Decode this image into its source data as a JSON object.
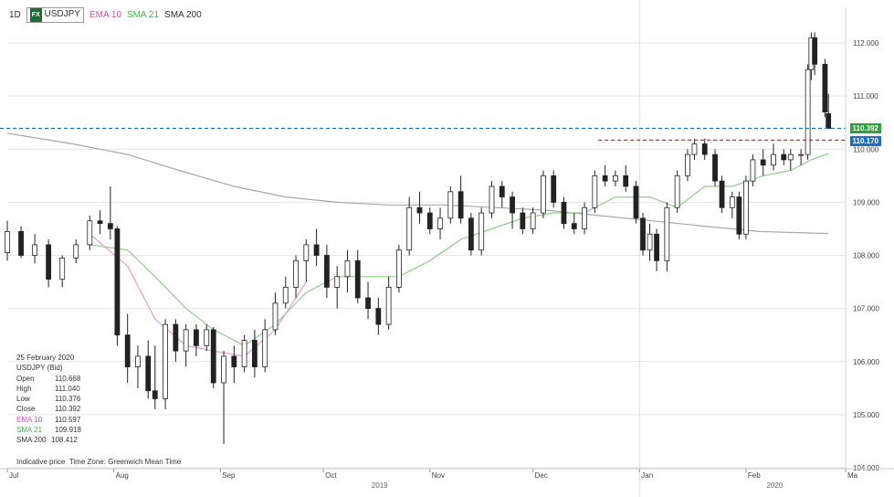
{
  "header": {
    "timeframe": "1D",
    "badge": "FX",
    "symbol": "USDJPY",
    "ema_label": "EMA 10",
    "sma21_label": "SMA 21",
    "sma200_label": "SMA 200"
  },
  "info_panel": {
    "date": "25 February 2020",
    "instrument": "USDJPY (Bid)",
    "rows": [
      {
        "label": "Open",
        "value": "110.668"
      },
      {
        "label": "High",
        "value": "111.040"
      },
      {
        "label": "Low",
        "value": "110.376"
      },
      {
        "label": "Close",
        "value": "110.392"
      },
      {
        "label": "EMA 10",
        "value": "110.597"
      },
      {
        "label": "SMA 21",
        "value": "109.918"
      },
      {
        "label": "SMA 200",
        "value": "108.412"
      }
    ]
  },
  "footer": {
    "indicative": "Indicative price",
    "timezone": "Time Zone: Greenwich Mean Time"
  },
  "price_tags": {
    "bid": "110.392",
    "ask": "110.170"
  },
  "colors": {
    "up_body": "#ffffff",
    "down_body": "#222222",
    "wick": "#222222",
    "ema10": "#e49bd6",
    "sma21": "#8fcf8a",
    "sma200": "#a8a8a8",
    "bid_line": "#1f6fbf",
    "ask_line": "#d93030",
    "bid_tag": "#2e9e3e",
    "ask_tag": "#1f6fbf",
    "grid": "#e6e6e6"
  },
  "chart_data": {
    "type": "candlestick",
    "y_axis": {
      "range": [
        104.0,
        112.5
      ],
      "ticks": [
        "104.000",
        "105.000",
        "106.000",
        "107.000",
        "108.000",
        "109.000",
        "110.000",
        "111.000",
        "112.000"
      ]
    },
    "x_axis": {
      "range": [
        "2019-07-01",
        "2020-03-01"
      ],
      "month_ticks": [
        {
          "date": "2019-07-01",
          "label": "Jul"
        },
        {
          "date": "2019-08-01",
          "label": "Aug"
        },
        {
          "date": "2019-09-01",
          "label": "Sep"
        },
        {
          "date": "2019-10-01",
          "label": "Oct"
        },
        {
          "date": "2019-11-01",
          "label": "Nov"
        },
        {
          "date": "2019-12-01",
          "label": "Dec"
        },
        {
          "date": "2020-01-01",
          "label": "Jan"
        },
        {
          "date": "2020-02-01",
          "label": "Feb"
        },
        {
          "date": "2020-03-01",
          "label": "Ma"
        }
      ],
      "year_labels": [
        {
          "date": "2019-10-15",
          "label": "2019"
        },
        {
          "date": "2020-02-07",
          "label": "2020"
        }
      ]
    },
    "year_divider": "2020-01-01",
    "horizontal_lines": [
      {
        "name": "bid",
        "value": 110.392
      },
      {
        "name": "ask",
        "value": 110.17,
        "start": "2019-12-20"
      }
    ],
    "candles": [
      {
        "date": "2019-07-01",
        "o": 108.05,
        "h": 108.65,
        "l": 107.9,
        "c": 108.45
      },
      {
        "date": "2019-07-05",
        "o": 108.45,
        "h": 108.55,
        "l": 107.95,
        "c": 108.0
      },
      {
        "date": "2019-07-09",
        "o": 108.0,
        "h": 108.4,
        "l": 107.85,
        "c": 108.2
      },
      {
        "date": "2019-07-13",
        "o": 108.2,
        "h": 108.3,
        "l": 107.4,
        "c": 107.55
      },
      {
        "date": "2019-07-17",
        "o": 107.55,
        "h": 108.0,
        "l": 107.4,
        "c": 107.95
      },
      {
        "date": "2019-07-21",
        "o": 107.95,
        "h": 108.3,
        "l": 107.85,
        "c": 108.2
      },
      {
        "date": "2019-07-25",
        "o": 108.2,
        "h": 108.75,
        "l": 108.1,
        "c": 108.65
      },
      {
        "date": "2019-07-28",
        "o": 108.65,
        "h": 108.85,
        "l": 108.4,
        "c": 108.6
      },
      {
        "date": "2019-07-31",
        "o": 108.6,
        "h": 109.3,
        "l": 108.3,
        "c": 108.5
      },
      {
        "date": "2019-08-02",
        "o": 108.5,
        "h": 108.55,
        "l": 106.3,
        "c": 106.5
      },
      {
        "date": "2019-08-05",
        "o": 106.5,
        "h": 106.9,
        "l": 105.6,
        "c": 105.9
      },
      {
        "date": "2019-08-08",
        "o": 105.9,
        "h": 106.3,
        "l": 105.5,
        "c": 106.1
      },
      {
        "date": "2019-08-11",
        "o": 106.1,
        "h": 106.4,
        "l": 105.3,
        "c": 105.45
      },
      {
        "date": "2019-08-13",
        "o": 105.45,
        "h": 106.3,
        "l": 105.1,
        "c": 105.3
      },
      {
        "date": "2019-08-16",
        "o": 105.3,
        "h": 106.8,
        "l": 105.1,
        "c": 106.7
      },
      {
        "date": "2019-08-19",
        "o": 106.7,
        "h": 106.8,
        "l": 106.0,
        "c": 106.2
      },
      {
        "date": "2019-08-22",
        "o": 106.2,
        "h": 106.7,
        "l": 105.9,
        "c": 106.6
      },
      {
        "date": "2019-08-25",
        "o": 106.6,
        "h": 106.7,
        "l": 106.1,
        "c": 106.3
      },
      {
        "date": "2019-08-28",
        "o": 106.3,
        "h": 106.7,
        "l": 106.2,
        "c": 106.6
      },
      {
        "date": "2019-08-30",
        "o": 106.6,
        "h": 106.65,
        "l": 105.5,
        "c": 105.6
      },
      {
        "date": "2019-09-02",
        "o": 105.6,
        "h": 106.2,
        "l": 104.45,
        "c": 106.1
      },
      {
        "date": "2019-09-05",
        "o": 106.1,
        "h": 106.3,
        "l": 105.6,
        "c": 105.9
      },
      {
        "date": "2019-09-08",
        "o": 105.9,
        "h": 106.5,
        "l": 105.8,
        "c": 106.4
      },
      {
        "date": "2019-09-11",
        "o": 106.4,
        "h": 106.6,
        "l": 105.7,
        "c": 105.9
      },
      {
        "date": "2019-09-14",
        "o": 105.9,
        "h": 106.8,
        "l": 105.8,
        "c": 106.6
      },
      {
        "date": "2019-09-17",
        "o": 106.6,
        "h": 107.3,
        "l": 106.5,
        "c": 107.1
      },
      {
        "date": "2019-09-20",
        "o": 107.1,
        "h": 107.6,
        "l": 107.0,
        "c": 107.4
      },
      {
        "date": "2019-09-23",
        "o": 107.4,
        "h": 108.0,
        "l": 107.2,
        "c": 107.9
      },
      {
        "date": "2019-09-26",
        "o": 107.9,
        "h": 108.3,
        "l": 107.5,
        "c": 108.2
      },
      {
        "date": "2019-09-29",
        "o": 108.2,
        "h": 108.5,
        "l": 107.8,
        "c": 108.0
      },
      {
        "date": "2019-10-02",
        "o": 108.0,
        "h": 108.2,
        "l": 107.2,
        "c": 107.4
      },
      {
        "date": "2019-10-05",
        "o": 107.4,
        "h": 107.8,
        "l": 107.0,
        "c": 107.6
      },
      {
        "date": "2019-10-08",
        "o": 107.6,
        "h": 108.1,
        "l": 107.3,
        "c": 107.9
      },
      {
        "date": "2019-10-11",
        "o": 107.9,
        "h": 108.1,
        "l": 107.1,
        "c": 107.2
      },
      {
        "date": "2019-10-14",
        "o": 107.2,
        "h": 107.5,
        "l": 106.8,
        "c": 107.0
      },
      {
        "date": "2019-10-17",
        "o": 107.0,
        "h": 107.2,
        "l": 106.5,
        "c": 106.7
      },
      {
        "date": "2019-10-20",
        "o": 106.7,
        "h": 107.6,
        "l": 106.6,
        "c": 107.4
      },
      {
        "date": "2019-10-23",
        "o": 107.4,
        "h": 108.2,
        "l": 107.3,
        "c": 108.1
      },
      {
        "date": "2019-10-26",
        "o": 108.1,
        "h": 109.1,
        "l": 108.0,
        "c": 108.9
      },
      {
        "date": "2019-10-29",
        "o": 108.9,
        "h": 109.2,
        "l": 108.6,
        "c": 108.8
      },
      {
        "date": "2019-11-01",
        "o": 108.8,
        "h": 108.9,
        "l": 108.4,
        "c": 108.5
      },
      {
        "date": "2019-11-04",
        "o": 108.5,
        "h": 108.9,
        "l": 108.3,
        "c": 108.7
      },
      {
        "date": "2019-11-07",
        "o": 108.7,
        "h": 109.3,
        "l": 108.6,
        "c": 109.2
      },
      {
        "date": "2019-11-10",
        "o": 109.2,
        "h": 109.5,
        "l": 108.6,
        "c": 108.7
      },
      {
        "date": "2019-11-13",
        "o": 108.7,
        "h": 108.8,
        "l": 108.0,
        "c": 108.1
      },
      {
        "date": "2019-11-16",
        "o": 108.1,
        "h": 108.9,
        "l": 108.0,
        "c": 108.8
      },
      {
        "date": "2019-11-19",
        "o": 108.8,
        "h": 109.4,
        "l": 108.7,
        "c": 109.3
      },
      {
        "date": "2019-11-22",
        "o": 109.3,
        "h": 109.4,
        "l": 108.9,
        "c": 109.1
      },
      {
        "date": "2019-11-25",
        "o": 109.1,
        "h": 109.2,
        "l": 108.5,
        "c": 108.8
      },
      {
        "date": "2019-11-28",
        "o": 108.8,
        "h": 108.9,
        "l": 108.4,
        "c": 108.5
      },
      {
        "date": "2019-12-01",
        "o": 108.5,
        "h": 108.9,
        "l": 108.4,
        "c": 108.8
      },
      {
        "date": "2019-12-04",
        "o": 108.8,
        "h": 109.6,
        "l": 108.7,
        "c": 109.5
      },
      {
        "date": "2019-12-07",
        "o": 109.5,
        "h": 109.6,
        "l": 108.9,
        "c": 109.0
      },
      {
        "date": "2019-12-10",
        "o": 109.0,
        "h": 109.1,
        "l": 108.5,
        "c": 108.6
      },
      {
        "date": "2019-12-13",
        "o": 108.6,
        "h": 108.8,
        "l": 108.4,
        "c": 108.5
      },
      {
        "date": "2019-12-16",
        "o": 108.5,
        "h": 109.0,
        "l": 108.4,
        "c": 108.9
      },
      {
        "date": "2019-12-19",
        "o": 108.9,
        "h": 109.6,
        "l": 108.8,
        "c": 109.5
      },
      {
        "date": "2019-12-22",
        "o": 109.5,
        "h": 109.7,
        "l": 109.3,
        "c": 109.4
      },
      {
        "date": "2019-12-25",
        "o": 109.4,
        "h": 109.6,
        "l": 109.3,
        "c": 109.5
      },
      {
        "date": "2019-12-28",
        "o": 109.5,
        "h": 109.7,
        "l": 109.2,
        "c": 109.3
      },
      {
        "date": "2019-12-31",
        "o": 109.3,
        "h": 109.4,
        "l": 108.6,
        "c": 108.7
      },
      {
        "date": "2020-01-02",
        "o": 108.7,
        "h": 108.8,
        "l": 108.0,
        "c": 108.1
      },
      {
        "date": "2020-01-04",
        "o": 108.1,
        "h": 108.6,
        "l": 107.9,
        "c": 108.4
      },
      {
        "date": "2020-01-06",
        "o": 108.4,
        "h": 108.5,
        "l": 107.7,
        "c": 107.9
      },
      {
        "date": "2020-01-09",
        "o": 107.9,
        "h": 109.0,
        "l": 107.7,
        "c": 108.9
      },
      {
        "date": "2020-01-12",
        "o": 108.9,
        "h": 109.6,
        "l": 108.8,
        "c": 109.5
      },
      {
        "date": "2020-01-15",
        "o": 109.5,
        "h": 110.0,
        "l": 109.4,
        "c": 109.9
      },
      {
        "date": "2020-01-17",
        "o": 109.9,
        "h": 110.2,
        "l": 109.8,
        "c": 110.1
      },
      {
        "date": "2020-01-20",
        "o": 110.1,
        "h": 110.2,
        "l": 109.8,
        "c": 109.9
      },
      {
        "date": "2020-01-23",
        "o": 109.9,
        "h": 110.0,
        "l": 109.3,
        "c": 109.4
      },
      {
        "date": "2020-01-25",
        "o": 109.4,
        "h": 109.5,
        "l": 108.8,
        "c": 108.9
      },
      {
        "date": "2020-01-28",
        "o": 108.9,
        "h": 109.2,
        "l": 108.7,
        "c": 109.1
      },
      {
        "date": "2020-01-30",
        "o": 109.1,
        "h": 109.2,
        "l": 108.3,
        "c": 108.4
      },
      {
        "date": "2020-02-01",
        "o": 108.4,
        "h": 109.5,
        "l": 108.3,
        "c": 109.4
      },
      {
        "date": "2020-02-03",
        "o": 109.4,
        "h": 109.9,
        "l": 109.3,
        "c": 109.8
      },
      {
        "date": "2020-02-06",
        "o": 109.8,
        "h": 110.0,
        "l": 109.5,
        "c": 109.7
      },
      {
        "date": "2020-02-09",
        "o": 109.7,
        "h": 110.1,
        "l": 109.6,
        "c": 109.9
      },
      {
        "date": "2020-02-12",
        "o": 109.9,
        "h": 110.0,
        "l": 109.7,
        "c": 109.8
      },
      {
        "date": "2020-02-14",
        "o": 109.8,
        "h": 110.0,
        "l": 109.6,
        "c": 109.9
      },
      {
        "date": "2020-02-17",
        "o": 109.9,
        "h": 110.0,
        "l": 109.7,
        "c": 109.9
      },
      {
        "date": "2020-02-19",
        "o": 109.9,
        "h": 111.6,
        "l": 109.8,
        "c": 111.5
      },
      {
        "date": "2020-02-20",
        "o": 111.5,
        "h": 112.2,
        "l": 111.3,
        "c": 112.1
      },
      {
        "date": "2020-02-21",
        "o": 112.1,
        "h": 112.2,
        "l": 111.4,
        "c": 111.6
      },
      {
        "date": "2020-02-24",
        "o": 111.6,
        "h": 111.7,
        "l": 110.6,
        "c": 110.7
      },
      {
        "date": "2020-02-25",
        "o": 110.668,
        "h": 111.04,
        "l": 110.376,
        "c": 110.392
      }
    ],
    "series": [
      {
        "name": "EMA 10",
        "points": [
          {
            "date": "2019-07-25",
            "v": 108.4
          },
          {
            "date": "2019-08-05",
            "v": 107.8
          },
          {
            "date": "2019-08-13",
            "v": 106.8
          },
          {
            "date": "2019-08-22",
            "v": 106.3
          },
          {
            "date": "2019-08-30",
            "v": 106.2
          },
          {
            "date": "2019-09-08",
            "v": 106.1
          },
          {
            "date": "2019-09-17",
            "v": 106.6
          },
          {
            "date": "2019-09-26",
            "v": 107.5
          }
        ]
      },
      {
        "name": "SMA 21",
        "points": [
          {
            "date": "2019-07-25",
            "v": 108.2
          },
          {
            "date": "2019-08-05",
            "v": 108.1
          },
          {
            "date": "2019-08-13",
            "v": 107.6
          },
          {
            "date": "2019-08-22",
            "v": 107.0
          },
          {
            "date": "2019-08-30",
            "v": 106.6
          },
          {
            "date": "2019-09-08",
            "v": 106.3
          },
          {
            "date": "2019-09-17",
            "v": 106.7
          },
          {
            "date": "2019-09-26",
            "v": 107.3
          },
          {
            "date": "2019-10-05",
            "v": 107.6
          },
          {
            "date": "2019-10-14",
            "v": 107.6
          },
          {
            "date": "2019-10-23",
            "v": 107.6
          },
          {
            "date": "2019-11-01",
            "v": 107.9
          },
          {
            "date": "2019-11-10",
            "v": 108.3
          },
          {
            "date": "2019-11-19",
            "v": 108.5
          },
          {
            "date": "2019-11-28",
            "v": 108.7
          },
          {
            "date": "2019-12-07",
            "v": 108.8
          },
          {
            "date": "2019-12-16",
            "v": 108.8
          },
          {
            "date": "2019-12-25",
            "v": 109.1
          },
          {
            "date": "2020-01-04",
            "v": 109.1
          },
          {
            "date": "2020-01-12",
            "v": 108.9
          },
          {
            "date": "2020-01-20",
            "v": 109.3
          },
          {
            "date": "2020-01-28",
            "v": 109.3
          },
          {
            "date": "2020-02-06",
            "v": 109.5
          },
          {
            "date": "2020-02-14",
            "v": 109.6
          },
          {
            "date": "2020-02-20",
            "v": 109.8
          },
          {
            "date": "2020-02-25",
            "v": 109.918
          }
        ]
      },
      {
        "name": "SMA 200",
        "points": [
          {
            "date": "2019-07-01",
            "v": 110.3
          },
          {
            "date": "2019-07-20",
            "v": 110.1
          },
          {
            "date": "2019-08-05",
            "v": 109.9
          },
          {
            "date": "2019-08-20",
            "v": 109.6
          },
          {
            "date": "2019-09-05",
            "v": 109.3
          },
          {
            "date": "2019-09-20",
            "v": 109.1
          },
          {
            "date": "2019-10-05",
            "v": 109.0
          },
          {
            "date": "2019-10-20",
            "v": 108.95
          },
          {
            "date": "2019-11-05",
            "v": 108.95
          },
          {
            "date": "2019-11-20",
            "v": 108.9
          },
          {
            "date": "2019-12-05",
            "v": 108.85
          },
          {
            "date": "2019-12-20",
            "v": 108.75
          },
          {
            "date": "2020-01-05",
            "v": 108.65
          },
          {
            "date": "2020-01-20",
            "v": 108.55
          },
          {
            "date": "2020-02-05",
            "v": 108.45
          },
          {
            "date": "2020-02-25",
            "v": 108.412
          }
        ]
      }
    ]
  }
}
